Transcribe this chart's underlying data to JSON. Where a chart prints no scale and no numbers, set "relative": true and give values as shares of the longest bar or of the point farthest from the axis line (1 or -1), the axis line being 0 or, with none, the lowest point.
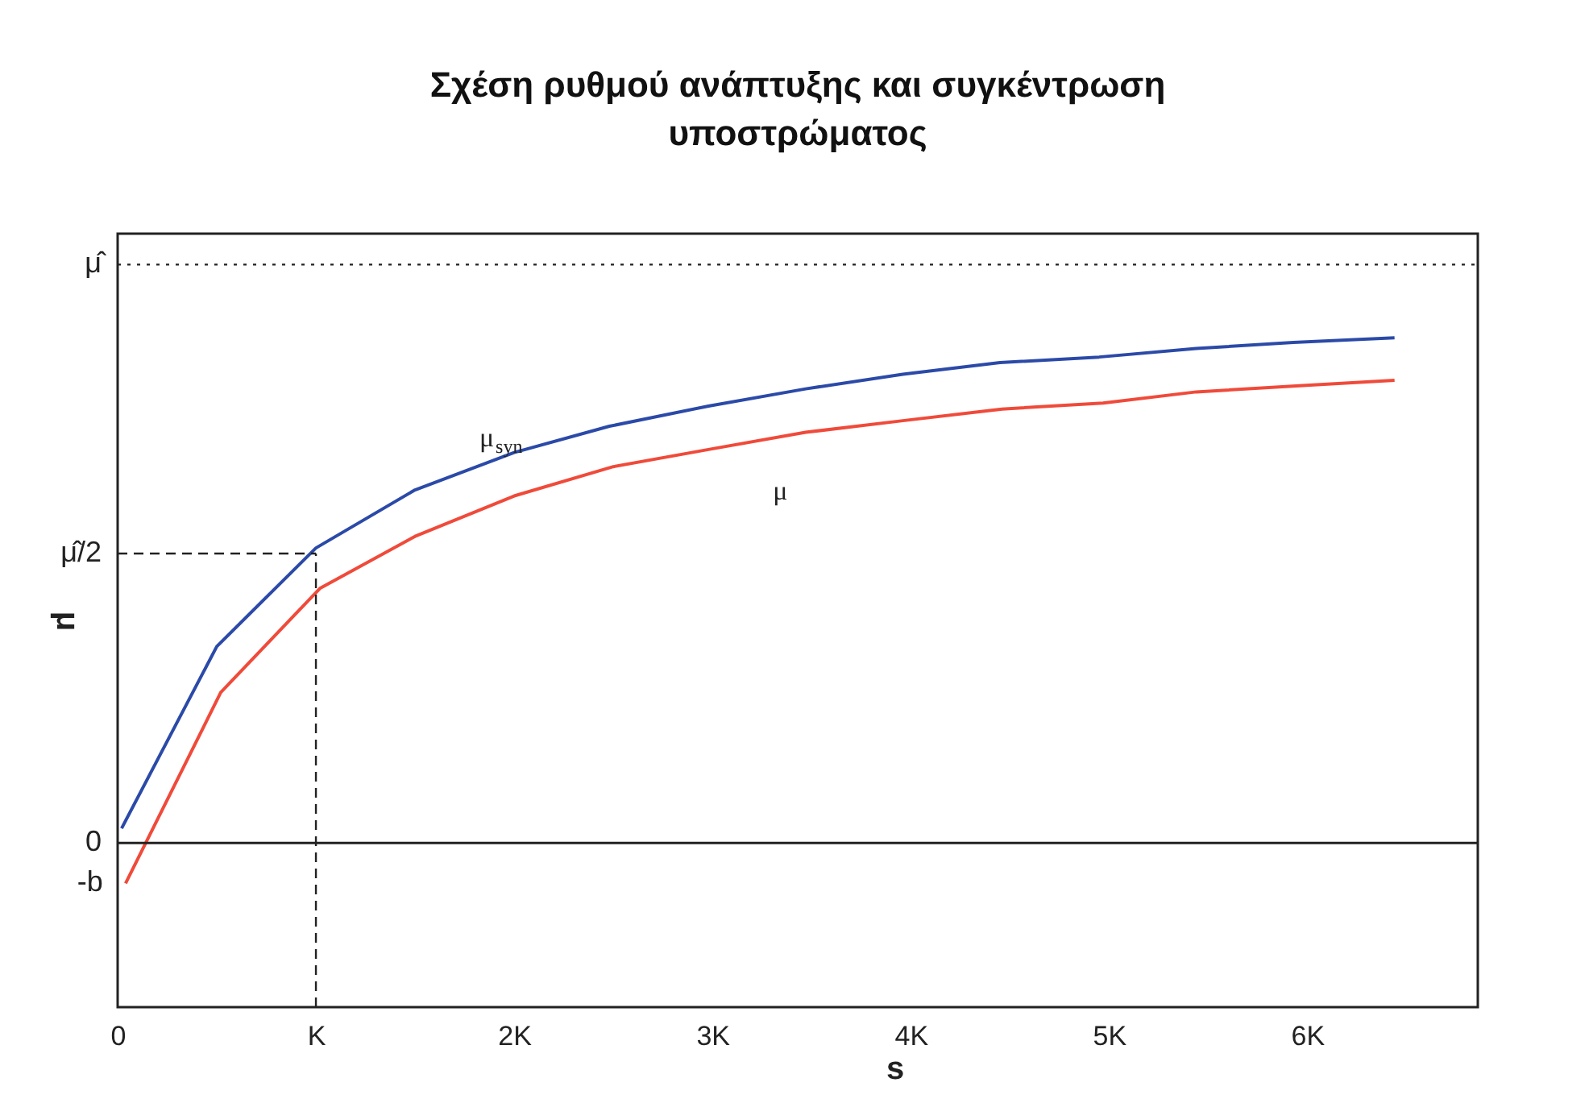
{
  "chart_data": {
    "type": "line",
    "title": "Σχέση ρυθμού ανάπτυξης και συγκέντρωση υποστρώματος",
    "xlabel": "s",
    "ylabel": "μ",
    "relative": true,
    "xlim": [
      0,
      6.86
    ],
    "xticks": [
      {
        "value": 0,
        "label": "0"
      },
      {
        "value": 1,
        "label": "K"
      },
      {
        "value": 2,
        "label": "2K"
      },
      {
        "value": 3,
        "label": "3K"
      },
      {
        "value": 4,
        "label": "4K"
      },
      {
        "value": 5,
        "label": "5K"
      },
      {
        "value": 6,
        "label": "6K"
      }
    ],
    "series": [
      {
        "name": "μ$_{syn}$",
        "color": "#2b4aa8",
        "x": [
          0.02,
          0.5,
          1.0,
          1.5,
          2.0,
          2.48,
          2.98,
          3.47,
          3.96,
          4.45,
          4.95,
          5.44,
          5.93,
          6.44
        ],
        "values": [
          0.029,
          0.389,
          0.584,
          0.699,
          0.773,
          0.825,
          0.865,
          0.899,
          0.928,
          0.951,
          0.962,
          0.979,
          0.991,
          1
        ]
      },
      {
        "name": "μ",
        "color": "#f04a3a",
        "x": [
          0.04,
          0.52,
          1.02,
          1.5,
          2.0,
          2.5,
          2.98,
          3.47,
          3.96,
          4.46,
          4.97,
          5.44,
          5.96,
          6.44
        ],
        "values": [
          -0.08,
          0.298,
          0.504,
          0.607,
          0.687,
          0.745,
          0.779,
          0.813,
          0.836,
          0.859,
          0.871,
          0.893,
          0.905,
          0.916
        ]
      }
    ],
    "ref_lines": [
      {
        "axis": "y",
        "value": 1.145,
        "label": "μ̂",
        "line_style": "dotted"
      },
      {
        "axis": "y",
        "value": 0.573,
        "label": "μ̂/2",
        "line_style": "dashed"
      },
      {
        "axis": "x",
        "value": 1,
        "line_style": "dashed"
      },
      {
        "axis": "y",
        "value": 0,
        "label": "0",
        "line_style": "solid"
      }
    ],
    "annotations": [
      {
        "text": "-b",
        "x": 0.04,
        "y": -0.08
      }
    ],
    "grid": false
  }
}
